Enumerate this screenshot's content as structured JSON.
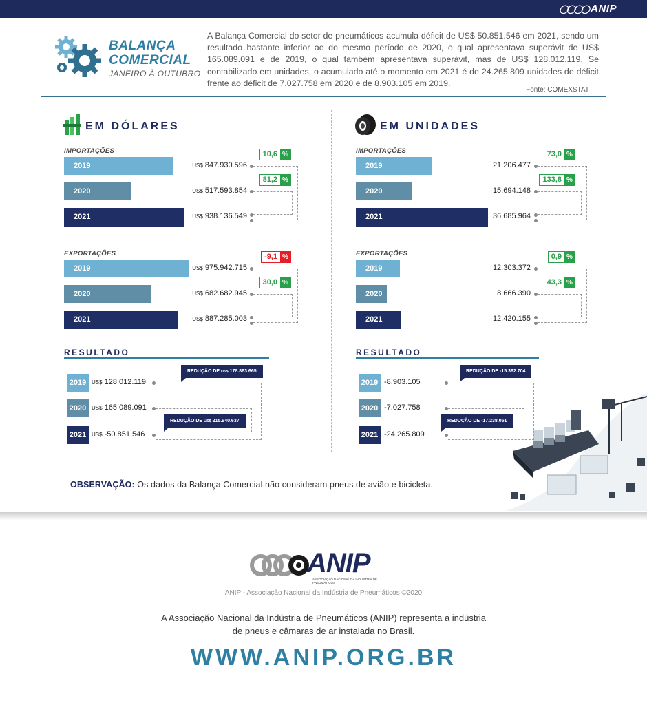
{
  "header": {
    "logo_text": "ANIP",
    "title_line1": "BALANÇA",
    "title_line2": "COMERCIAL",
    "subtitle": "JANEIRO À OUTUBRO",
    "intro": "A Balança Comercial do setor de pneumáticos acumula déficit de US$ 50.851.546 em 2021, sendo um resultado bastante inferior ao do mesmo período de 2020, o qual apresentava superávit de US$ 165.089.091 e de 2019, o qual também apresentava superávit, mas de US$ 128.012.119. Se contabilizado em unidades, o acumulado até o momento em 2021 é de 24.265.809 unidades de déficit frente ao déficit de 7.027.758 em 2020 e de 8.903.105 em 2019.",
    "source": "Fonte: COMEXSTAT"
  },
  "colors": {
    "y2019": "#6fb1d2",
    "y2020": "#5f8ea6",
    "y2021": "#1f2f66",
    "positive": "#29a04a",
    "negative": "#e41e26",
    "accent": "#2f7fa3"
  },
  "icons": {
    "header": "gears-icon",
    "dollars": "money-stack-icon",
    "units": "tire-icon",
    "illustration": "cargo-ship-illustration"
  },
  "chart_data": [
    {
      "type": "bar",
      "title": "EM DÓLARES",
      "subtitle": "IMPORTAÇÕES",
      "currency": "US$",
      "categories": [
        "2019",
        "2020",
        "2021"
      ],
      "values": [
        847930596,
        517593854,
        938136549
      ],
      "labels": [
        "847.930.596",
        "517.593.854",
        "938.136.549"
      ],
      "changes": [
        {
          "value": "10,6",
          "sign": "positive"
        },
        {
          "value": "81,2",
          "sign": "positive"
        }
      ]
    },
    {
      "type": "bar",
      "title": "EM DÓLARES",
      "subtitle": "EXPORTAÇÕES",
      "currency": "US$",
      "categories": [
        "2019",
        "2020",
        "2021"
      ],
      "values": [
        975942715,
        682682945,
        887285003
      ],
      "labels": [
        "975.942.715",
        "682.682.945",
        "887.285.003"
      ],
      "changes": [
        {
          "value": "-9,1",
          "sign": "negative"
        },
        {
          "value": "30,0",
          "sign": "positive"
        }
      ]
    },
    {
      "type": "table",
      "title": "RESULTADO",
      "currency": "US$",
      "categories": [
        "2019",
        "2020",
        "2021"
      ],
      "values": [
        128012119,
        165089091,
        -50851546
      ],
      "labels": [
        "128.012.119",
        "165.089.091",
        "-50.851.546"
      ],
      "notes": [
        {
          "prefix": "REDUÇÃO DE",
          "currency": "US$",
          "value": "178.863.665"
        },
        {
          "prefix": "REDUÇÃO DE",
          "currency": "US$",
          "value": "215.940.637"
        }
      ]
    },
    {
      "type": "bar",
      "title": "EM UNIDADES",
      "subtitle": "IMPORTAÇÕES",
      "categories": [
        "2019",
        "2020",
        "2021"
      ],
      "values": [
        21206477,
        15694148,
        36685964
      ],
      "labels": [
        "21.206.477",
        "15.694.148",
        "36.685.964"
      ],
      "changes": [
        {
          "value": "73,0",
          "sign": "positive"
        },
        {
          "value": "133,8",
          "sign": "positive"
        }
      ]
    },
    {
      "type": "bar",
      "title": "EM UNIDADES",
      "subtitle": "EXPORTAÇÕES",
      "categories": [
        "2019",
        "2020",
        "2021"
      ],
      "values": [
        12303372,
        8666390,
        12420155
      ],
      "labels": [
        "12.303.372",
        "8.666.390",
        "12.420.155"
      ],
      "changes": [
        {
          "value": "0,9",
          "sign": "positive"
        },
        {
          "value": "43,3",
          "sign": "positive"
        }
      ]
    },
    {
      "type": "table",
      "title": "RESULTADO",
      "categories": [
        "2019",
        "2020",
        "2021"
      ],
      "values": [
        -8903105,
        -7027758,
        -24265809
      ],
      "labels": [
        "-8.903.105",
        "-7.027.758",
        "-24.265.809"
      ],
      "notes": [
        {
          "prefix": "REDUÇÃO DE",
          "currency": "",
          "value": "-15.362.704"
        },
        {
          "prefix": "REDUÇÃO DE",
          "currency": "",
          "value": "-17.238.051"
        }
      ]
    }
  ],
  "percent_symbol": "%",
  "observation": {
    "label": "OBSERVAÇÃO:",
    "text": "Os dados da Balança Comercial não consideram pneus de avião e bicicleta."
  },
  "footer": {
    "logo_text": "ANIP",
    "logo_small": "ASSOCIAÇÃO NACIONAL DA INDÚSTRIA DE PNEUMÁTICOS",
    "copyright": "ANIP - Associação Nacional da Indústria de Pneumáticos ©2020",
    "about_line1": "A Associação Nacional da Indústria de Pneumáticos (ANIP) representa a indústria",
    "about_line2": "de pneus e câmaras de ar instalada no Brasil.",
    "url": "WWW.ANIP.ORG.BR"
  }
}
